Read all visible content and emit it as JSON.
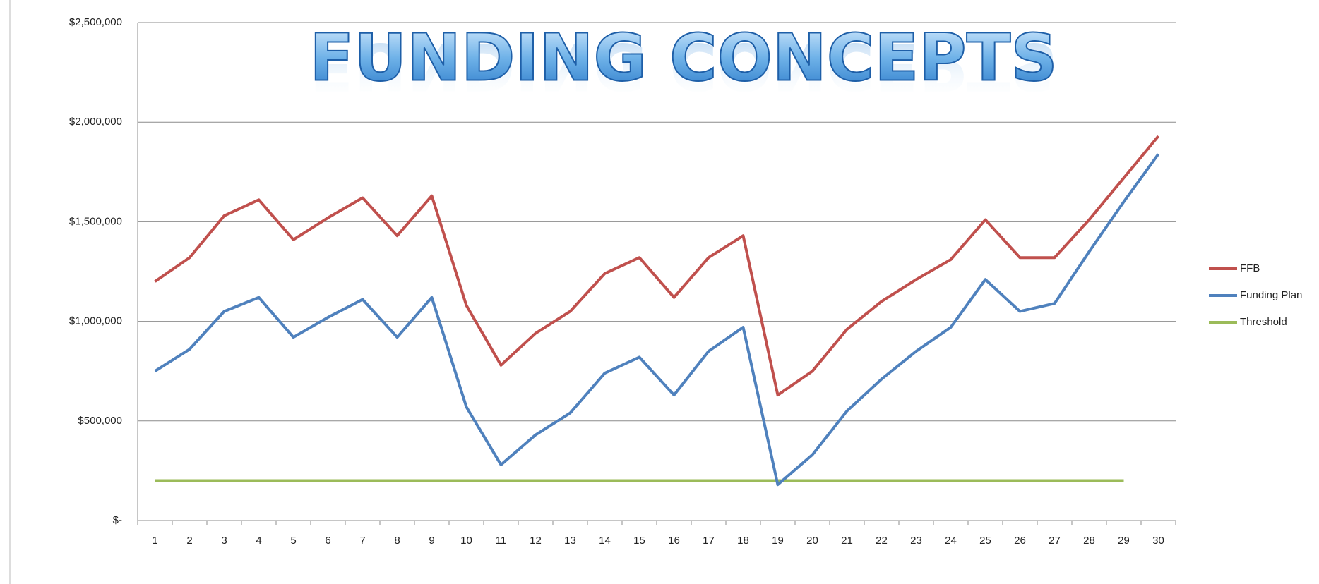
{
  "chart_data": {
    "type": "line",
    "title": "FUNDING CONCEPTS",
    "categories": [
      "1",
      "2",
      "3",
      "4",
      "5",
      "6",
      "7",
      "8",
      "9",
      "10",
      "11",
      "12",
      "13",
      "14",
      "15",
      "16",
      "17",
      "18",
      "19",
      "20",
      "21",
      "22",
      "23",
      "24",
      "25",
      "26",
      "27",
      "28",
      "29",
      "30"
    ],
    "series": [
      {
        "name": "FFB",
        "color": "#c0504d",
        "values": [
          1200000,
          1320000,
          1530000,
          1610000,
          1410000,
          1520000,
          1620000,
          1430000,
          1630000,
          1080000,
          780000,
          940000,
          1050000,
          1240000,
          1320000,
          1120000,
          1320000,
          1430000,
          630000,
          750000,
          960000,
          1100000,
          1210000,
          1310000,
          1510000,
          1320000,
          1320000,
          1510000,
          1720000,
          1930000
        ]
      },
      {
        "name": "Funding Plan",
        "color": "#4f81bd",
        "values": [
          750000,
          860000,
          1050000,
          1120000,
          920000,
          1020000,
          1110000,
          920000,
          1120000,
          570000,
          280000,
          430000,
          540000,
          740000,
          820000,
          630000,
          850000,
          970000,
          180000,
          330000,
          550000,
          710000,
          850000,
          970000,
          1210000,
          1050000,
          1090000,
          1350000,
          1600000,
          1840000
        ]
      },
      {
        "name": "Threshold",
        "color": "#9bbb59",
        "values": [
          200000,
          200000,
          200000,
          200000,
          200000,
          200000,
          200000,
          200000,
          200000,
          200000,
          200000,
          200000,
          200000,
          200000,
          200000,
          200000,
          200000,
          200000,
          200000,
          200000,
          200000,
          200000,
          200000,
          200000,
          200000,
          200000,
          200000,
          200000,
          200000,
          null
        ]
      }
    ],
    "ylim": [
      0,
      2500000
    ],
    "yticks": [
      {
        "value": 0,
        "label": "$-"
      },
      {
        "value": 500000,
        "label": "$500,000"
      },
      {
        "value": 1000000,
        "label": "$1,000,000"
      },
      {
        "value": 1500000,
        "label": "$1,500,000"
      },
      {
        "value": 2000000,
        "label": "$2,000,000"
      },
      {
        "value": 2500000,
        "label": "$2,500,000"
      }
    ],
    "grid": true,
    "legend": "right"
  }
}
